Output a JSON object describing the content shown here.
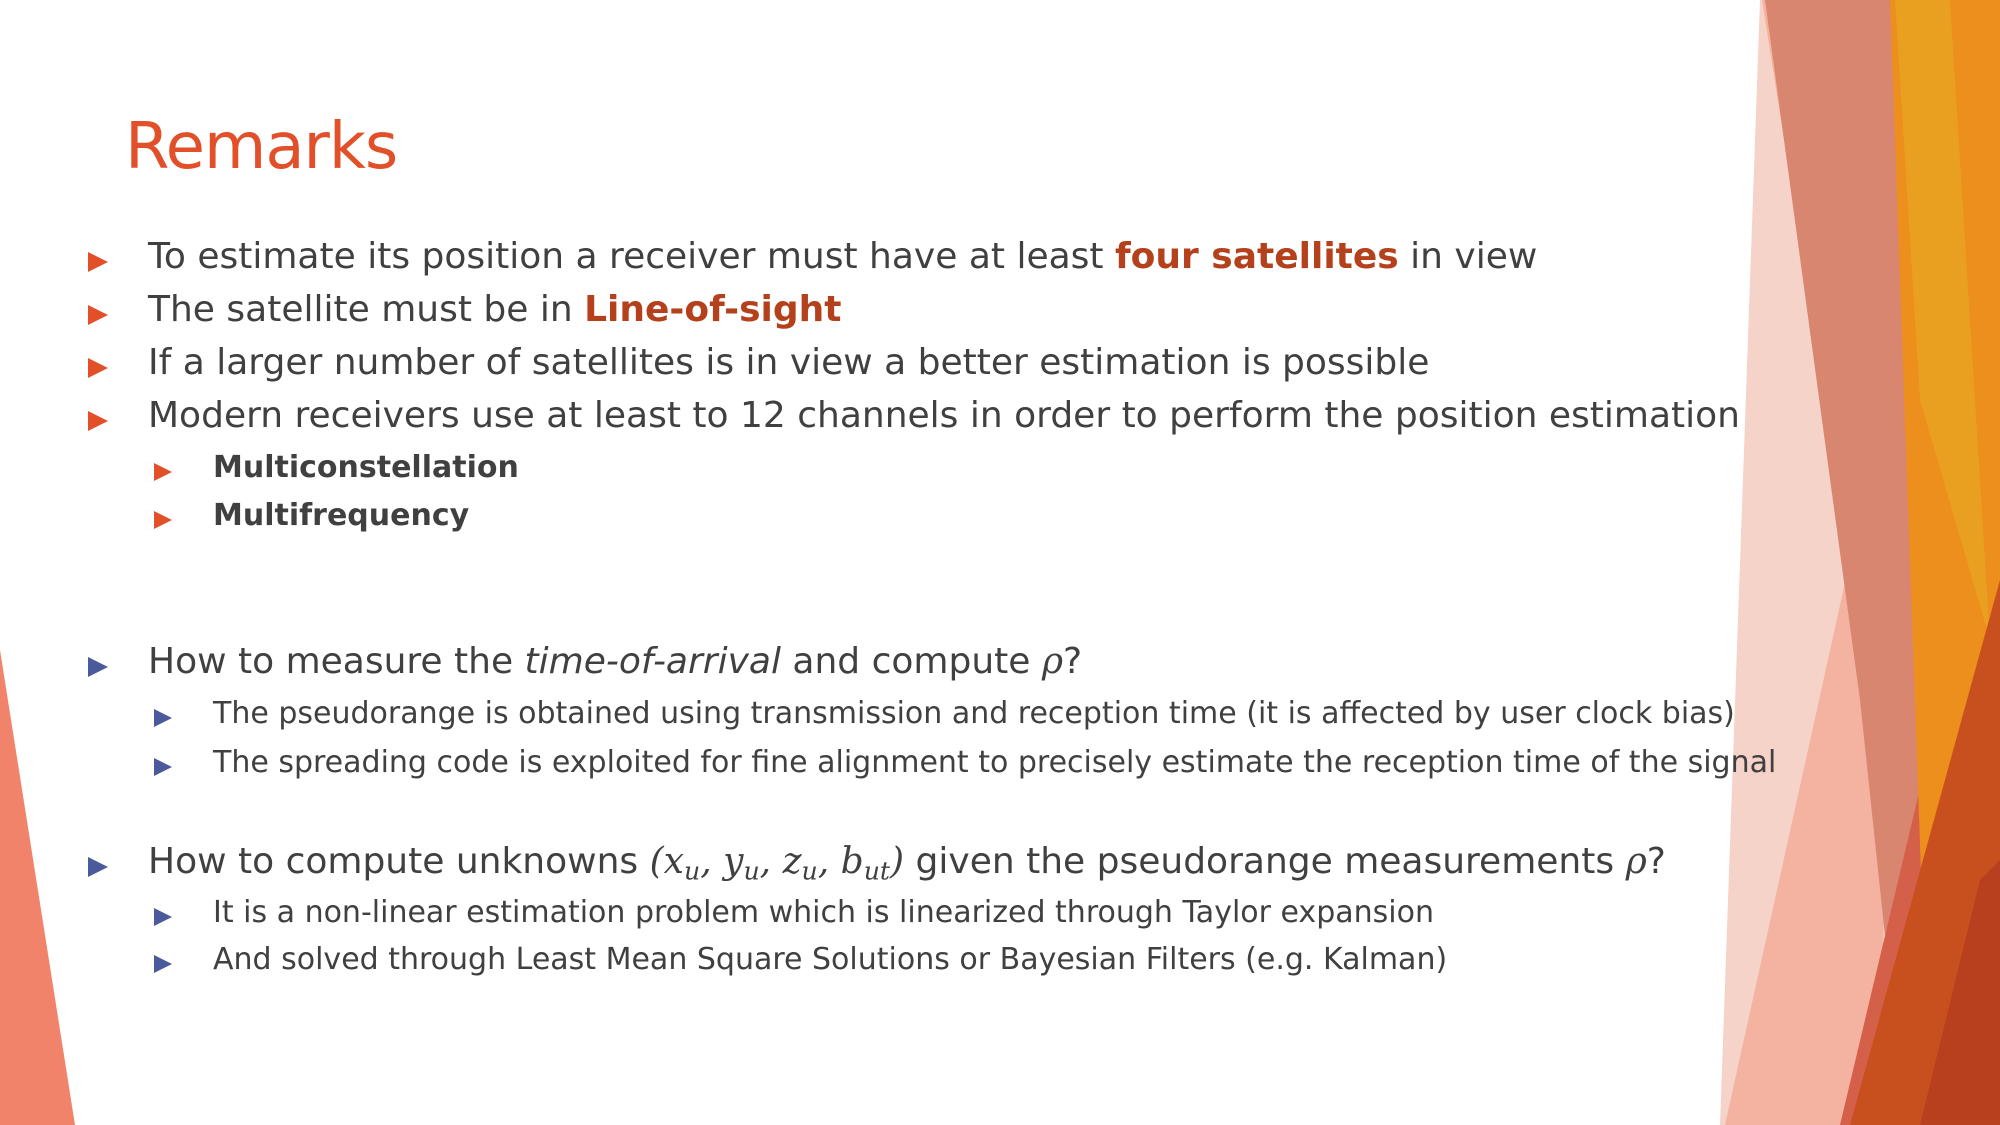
{
  "title": "Remarks",
  "colors": {
    "accent": "#e2502a",
    "highlight": "#b4401c",
    "blue_bullet": "#4a5a9a",
    "text": "#404040"
  },
  "bullets": {
    "b1": {
      "pre": "To estimate its position a receiver must have at least ",
      "hl": "four satellites",
      "post": " in view"
    },
    "b2": {
      "pre": "The satellite must be in ",
      "hl": "Line-of-sight"
    },
    "b3": {
      "text": "If a larger number of satellites is in view a better estimation is possible"
    },
    "b4": {
      "text": "Modern receivers use at least to 12 channels in order to perform the position estimation"
    },
    "b4_sub": [
      "Multiconstellation",
      "Multifrequency"
    ],
    "q1": {
      "pre": "How to measure the ",
      "em": "time-of-arrival",
      "mid": " and compute ",
      "rho": "ρ",
      "post": "?"
    },
    "q1_sub": [
      "The pseudorange is obtained using transmission and reception time (it is affected by user clock bias)",
      "The spreading code is exploited for fine alignment to precisely estimate the reception time of the signal"
    ],
    "q2": {
      "pre": "How to compute unknowns ",
      "open": "(",
      "x": "x",
      "x_sub": "u",
      "y": "y",
      "y_sub": "u",
      "z": "z",
      "z_sub": "u",
      "b": "b",
      "b_sub": "ut",
      "sep": ", ",
      "close": ")",
      "mid": " given the pseudorange measurements ",
      "rho": "ρ",
      "post": "?"
    },
    "q2_sub": [
      "It is a non-linear estimation problem which is linearized through Taylor expansion",
      "And solved through Least Mean Square Solutions or Bayesian Filters (e.g. Kalman)"
    ]
  }
}
